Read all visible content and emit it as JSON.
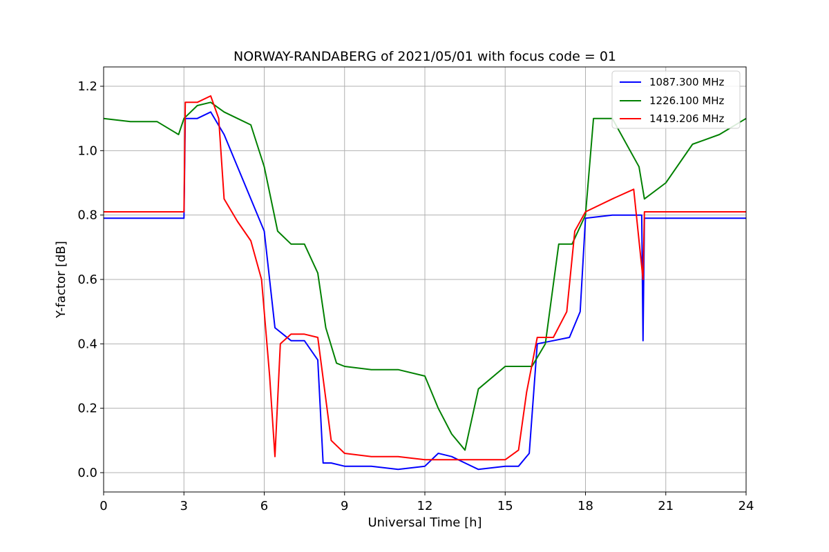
{
  "chart_data": {
    "type": "line",
    "title": "NORWAY-RANDABERG of 2021/05/01 with focus code = 01",
    "xlabel": "Universal Time [h]",
    "ylabel": "Y-factor [dB]",
    "xlim": [
      0,
      24
    ],
    "ylim": [
      -0.06,
      1.26
    ],
    "xticks": [
      0,
      3,
      6,
      9,
      12,
      15,
      18,
      21,
      24
    ],
    "xtick_labels": [
      "0",
      "3",
      "6",
      "9",
      "12",
      "15",
      "18",
      "21",
      "24"
    ],
    "yticks": [
      0.0,
      0.2,
      0.4,
      0.6,
      0.8,
      1.0,
      1.2
    ],
    "ytick_labels": [
      "0.0",
      "0.2",
      "0.4",
      "0.6",
      "0.8",
      "1.0",
      "1.2"
    ],
    "grid": true,
    "legend_position": "top-right",
    "series": [
      {
        "name": "1087.300 MHz",
        "color": "#0000ff",
        "x": [
          0,
          1,
          2,
          3,
          3.05,
          3.5,
          4,
          4.5,
          5,
          5.5,
          6,
          6.4,
          7,
          7.5,
          8,
          8.2,
          8.5,
          9,
          10,
          11,
          12,
          12.5,
          13,
          13.5,
          14,
          15,
          15.5,
          15.9,
          16.2,
          16.8,
          17.4,
          17.8,
          18,
          19,
          20,
          20.1,
          20.15,
          20.2,
          21,
          22,
          23,
          24
        ],
        "y": [
          0.79,
          0.79,
          0.79,
          0.79,
          1.1,
          1.1,
          1.12,
          1.05,
          0.95,
          0.85,
          0.75,
          0.45,
          0.41,
          0.41,
          0.35,
          0.03,
          0.03,
          0.02,
          0.02,
          0.01,
          0.02,
          0.06,
          0.05,
          0.03,
          0.01,
          0.02,
          0.02,
          0.06,
          0.4,
          0.41,
          0.42,
          0.5,
          0.79,
          0.8,
          0.8,
          0.8,
          0.41,
          0.79,
          0.79,
          0.79,
          0.79,
          0.79
        ]
      },
      {
        "name": "1226.100 MHz",
        "color": "#008000",
        "x": [
          0,
          1,
          2,
          2.8,
          3,
          3.5,
          4,
          4.5,
          5,
          5.5,
          6,
          6.5,
          7,
          7.5,
          8,
          8.3,
          8.7,
          9,
          10,
          11,
          12,
          12.5,
          13,
          13.5,
          14,
          15,
          16,
          16.5,
          17,
          17.5,
          18,
          18.3,
          19,
          20,
          20.2,
          21,
          22,
          23,
          24
        ],
        "y": [
          1.1,
          1.09,
          1.09,
          1.05,
          1.1,
          1.14,
          1.15,
          1.12,
          1.1,
          1.08,
          0.95,
          0.75,
          0.71,
          0.71,
          0.62,
          0.45,
          0.34,
          0.33,
          0.32,
          0.32,
          0.3,
          0.2,
          0.12,
          0.07,
          0.26,
          0.33,
          0.33,
          0.4,
          0.71,
          0.71,
          0.8,
          1.1,
          1.1,
          0.95,
          0.85,
          0.9,
          1.02,
          1.05,
          1.1
        ]
      },
      {
        "name": "1419.206 MHz",
        "color": "#ff0000",
        "x": [
          0,
          1,
          2,
          3,
          3.05,
          3.5,
          4,
          4.3,
          4.5,
          5,
          5.5,
          5.9,
          6.2,
          6.4,
          6.6,
          7,
          7.5,
          8,
          8.5,
          9,
          10,
          11,
          12,
          13,
          14,
          15,
          15.5,
          15.8,
          16.2,
          16.8,
          17.3,
          17.6,
          18,
          19,
          19.8,
          20.15,
          20.2,
          21,
          22,
          23,
          24
        ],
        "y": [
          0.81,
          0.81,
          0.81,
          0.81,
          1.15,
          1.15,
          1.17,
          1.1,
          0.85,
          0.78,
          0.72,
          0.6,
          0.3,
          0.05,
          0.4,
          0.43,
          0.43,
          0.42,
          0.1,
          0.06,
          0.05,
          0.05,
          0.04,
          0.04,
          0.04,
          0.04,
          0.07,
          0.25,
          0.42,
          0.42,
          0.5,
          0.75,
          0.81,
          0.85,
          0.88,
          0.6,
          0.81,
          0.81,
          0.81,
          0.81,
          0.81
        ]
      }
    ]
  }
}
